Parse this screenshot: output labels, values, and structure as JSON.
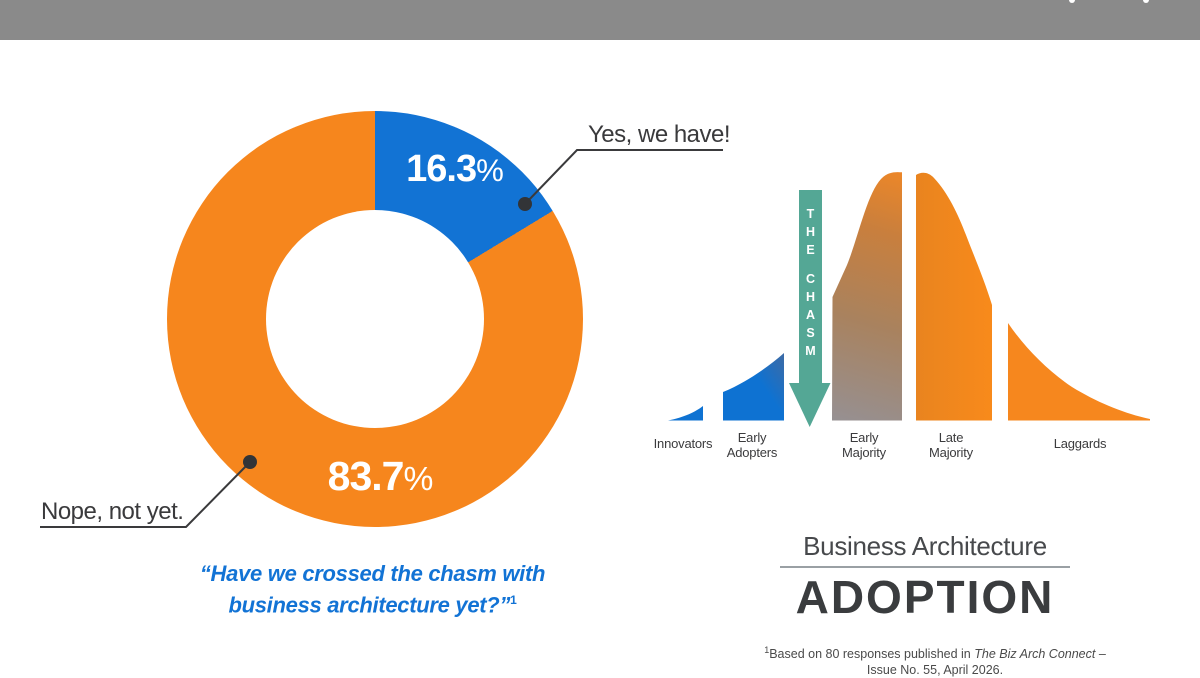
{
  "top_bar": {
    "color": "#8a8a8a"
  },
  "donut": {
    "yes_value": "16.3",
    "no_value": "83.7",
    "pct_sign": "%",
    "yes_color": "#1273d4",
    "no_color": "#f6861d",
    "yes_callout": "Yes, we have!",
    "no_callout": "Nope, not yet.",
    "question_line1": "“Have we crossed the chasm with",
    "question_line2": "business architecture yet?”",
    "question_marker": "1",
    "question_color": "#1273d5"
  },
  "callouts": {
    "line_color": "#3a3a3c",
    "dot_color": "#323437"
  },
  "chasm": {
    "arrow_text": "THE CHASM",
    "arrow_color": "#54a795",
    "colors": {
      "innovators": "#0e72d2",
      "ea0": "#0e72d2",
      "ea1": "#3a6ba8",
      "em0": "#969092",
      "em1": "#a9825e",
      "em2": "#c97f3d",
      "em3": "#ee8727",
      "lm0": "#e9841f",
      "lm1": "#f88a1b",
      "laggards": "#f6871e"
    },
    "labels": {
      "innovators": "Innovators",
      "early_adopters_1": "Early",
      "early_adopters_2": "Adopters",
      "early_majority_1": "Early",
      "early_majority_2": "Majority",
      "late_majority_1": "Late",
      "late_majority_2": "Majority",
      "laggards": "Laggards"
    }
  },
  "title": {
    "line1": "Business Architecture",
    "line2": "ADOPTION"
  },
  "footnote": {
    "marker": "1",
    "lead": "Based on 80 responses published in ",
    "source_italic": "The Biz Arch Connect –",
    "line2": "Issue No. 55, April 2026."
  },
  "chart_data": [
    {
      "type": "pie",
      "donut": true,
      "title": "“Have we crossed the chasm with business architecture yet?”",
      "labels": [
        "Yes, we have!",
        "Nope, not yet."
      ],
      "values": [
        16.3,
        83.7
      ],
      "value_labels": [
        "16.3%",
        "83.7%"
      ],
      "colors": [
        "#1273d4",
        "#f6861d"
      ],
      "start_angle_deg": 0,
      "direction": "clockwise",
      "legend_position": "callouts"
    },
    {
      "type": "area",
      "title": "Technology adoption lifecycle (crossing the chasm)",
      "categories": [
        "Innovators",
        "Early Adopters",
        "Early Majority",
        "Late Majority",
        "Laggards"
      ],
      "annotation": "THE CHASM",
      "annotation_position": "between Early Adopters and Early Majority",
      "grid": false
    }
  ]
}
